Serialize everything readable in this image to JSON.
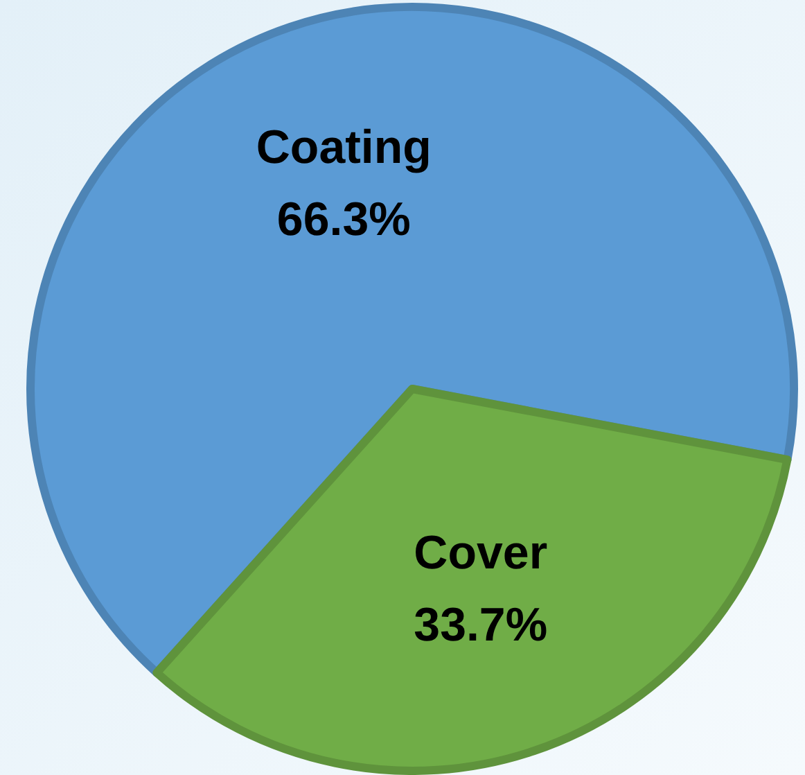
{
  "chart_data": {
    "type": "pie",
    "categories": [
      "Coating",
      "Cover"
    ],
    "values": [
      66.3,
      33.7
    ],
    "colors": [
      "#5b9bd5",
      "#70ad47"
    ],
    "value_labels": [
      "66.3%",
      "33.7%"
    ],
    "legend": false
  }
}
